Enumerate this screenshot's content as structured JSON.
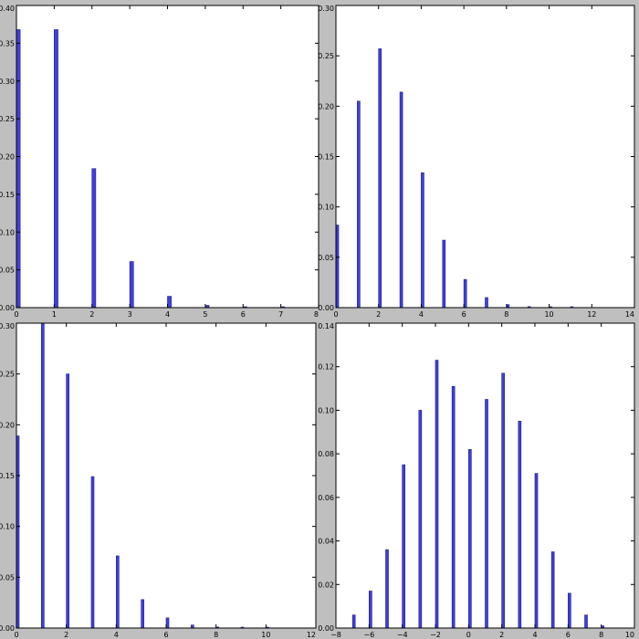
{
  "chart_data": [
    {
      "type": "bar",
      "title": "",
      "xlabel": "",
      "ylabel": "",
      "xlim": [
        0,
        8
      ],
      "ylim": [
        0,
        0.4
      ],
      "xticks": [
        "0",
        "1",
        "2",
        "3",
        "4",
        "5",
        "6",
        "7",
        "8"
      ],
      "yticks": [
        "0.00",
        "0.05",
        "0.10",
        "0.15",
        "0.20",
        "0.25",
        "0.30",
        "0.35",
        "0.40"
      ],
      "x": [
        0,
        1,
        2,
        3,
        4,
        5,
        6,
        7
      ],
      "values": [
        0.368,
        0.368,
        0.184,
        0.061,
        0.015,
        0.003,
        0.001,
        0.0001
      ],
      "bar_color": "#3f3fe0",
      "grid": false
    },
    {
      "type": "bar",
      "title": "",
      "xlabel": "",
      "ylabel": "",
      "xlim": [
        0,
        14
      ],
      "ylim": [
        0,
        0.3
      ],
      "xticks": [
        "0",
        "2",
        "4",
        "6",
        "8",
        "10",
        "12",
        "14"
      ],
      "yticks": [
        "0.00",
        "0.05",
        "0.10",
        "0.15",
        "0.20",
        "0.25",
        "0.30"
      ],
      "x": [
        0,
        1,
        2,
        3,
        4,
        5,
        6,
        7,
        8,
        9,
        10,
        11
      ],
      "values": [
        0.082,
        0.205,
        0.257,
        0.214,
        0.134,
        0.067,
        0.028,
        0.01,
        0.003,
        0.001,
        0.0003,
        0.0001
      ],
      "bar_color": "#3f3fe0",
      "grid": false
    },
    {
      "type": "bar",
      "title": "",
      "xlabel": "",
      "ylabel": "",
      "xlim": [
        0,
        12
      ],
      "ylim": [
        0,
        0.3
      ],
      "xticks": [
        "0",
        "2",
        "4",
        "6",
        "8",
        "10",
        "12"
      ],
      "yticks": [
        "0.00",
        "0.05",
        "0.10",
        "0.15",
        "0.20",
        "0.25",
        "0.30"
      ],
      "x": [
        0,
        1,
        2,
        3,
        4,
        5,
        6,
        7,
        8,
        9,
        10
      ],
      "values": [
        0.189,
        0.3,
        0.25,
        0.149,
        0.071,
        0.028,
        0.01,
        0.003,
        0.001,
        0.0003,
        0.0001
      ],
      "bar_color": "#3f3fe0",
      "grid": false
    },
    {
      "type": "bar",
      "title": "",
      "xlabel": "",
      "ylabel": "",
      "xlim": [
        -8,
        10
      ],
      "ylim": [
        0,
        0.14
      ],
      "xticks": [
        "−8",
        "−6",
        "−4",
        "−2",
        "0",
        "2",
        "4",
        "6",
        "8",
        "10"
      ],
      "yticks": [
        "0.00",
        "0.02",
        "0.04",
        "0.06",
        "0.08",
        "0.10",
        "0.12",
        "0.14"
      ],
      "x": [
        -7,
        -6,
        -5,
        -4,
        -3,
        -2,
        -1,
        0,
        1,
        2,
        3,
        4,
        5,
        6,
        7,
        8
      ],
      "values": [
        0.006,
        0.017,
        0.036,
        0.075,
        0.1,
        0.123,
        0.111,
        0.082,
        0.105,
        0.117,
        0.095,
        0.071,
        0.035,
        0.016,
        0.006,
        0.001
      ],
      "bar_color": "#3f3fe0",
      "grid": false
    }
  ]
}
